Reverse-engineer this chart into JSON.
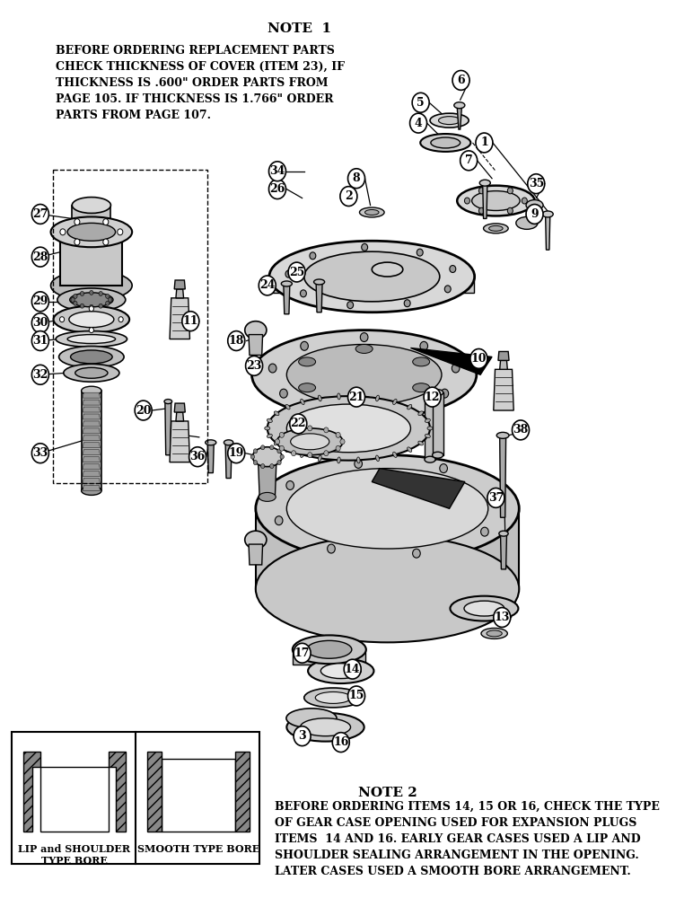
{
  "bg_color": "#ffffff",
  "title": "NOTE  1",
  "note1_text": "BEFORE ORDERING REPLACEMENT PARTS\nCHECK THICKNESS OF COVER (ITEM 23), IF\nTHICKNESS IS .600\" ORDER PARTS FROM\nPAGE 105. IF THICKNESS IS 1.766\" ORDER\nPARTS FROM PAGE 107.",
  "note2_title": "NOTE 2",
  "note2_text": "BEFORE ORDERING ITEMS 14, 15 OR 16, CHECK THE TYPE\nOF GEAR CASE OPENING USED FOR EXPANSION PLUGS\nITEMS  14 AND 16. EARLY GEAR CASES USED A LIP AND\nSHOULDER SEALING ARRANGEMENT IN THE OPENING.\nLATER CASES USED A SMOOTH BORE ARRANGEMENT.",
  "label1_text": "LIP and SHOULDER\nTYPE BORE",
  "label2_text": "SMOOTH TYPE BORE",
  "font_size_title": 11,
  "font_size_note": 9,
  "font_size_label": 8,
  "font_size_partnum": 9
}
